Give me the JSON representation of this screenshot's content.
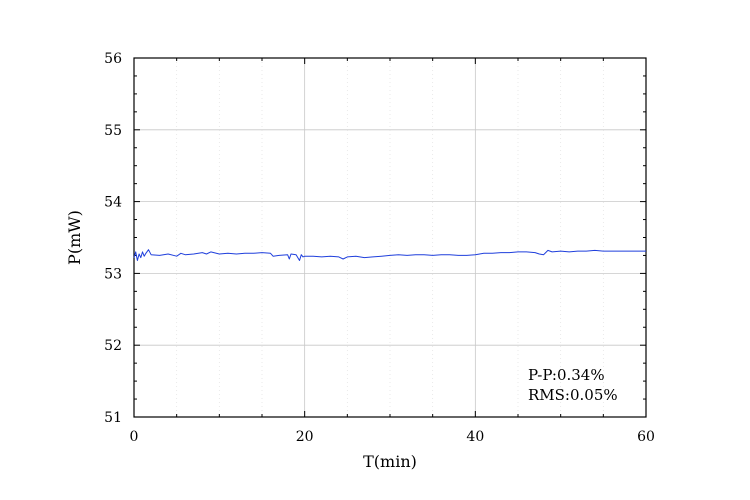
{
  "chart_data": {
    "type": "line",
    "xlabel": "T(min)",
    "ylabel": "P(mW)",
    "xlim": [
      0,
      60
    ],
    "ylim": [
      51,
      56
    ],
    "xticks": [
      0,
      20,
      40,
      60
    ],
    "xtick_labels": [
      "0",
      "20",
      "40",
      "60"
    ],
    "yticks": [
      51,
      52,
      53,
      54,
      55,
      56
    ],
    "ytick_labels": [
      "51",
      "52",
      "53",
      "54",
      "55",
      "56"
    ],
    "grid": true,
    "annotations": [
      "P-P:0.34%",
      "RMS:0.05%"
    ],
    "series": [
      {
        "color": "#1f3fdc",
        "x": [
          0,
          0.2,
          0.4,
          0.6,
          0.8,
          1.0,
          1.2,
          1.4,
          1.7,
          2.0,
          3.0,
          4.0,
          5.0,
          5.5,
          6.0,
          7.0,
          8.0,
          8.5,
          9.0,
          10.0,
          11.0,
          12.0,
          13.0,
          14.0,
          15.0,
          16.0,
          16.3,
          17.0,
          18.0,
          18.2,
          18.4,
          19.0,
          19.4,
          19.6,
          19.8,
          20.0,
          21.0,
          22.0,
          23.0,
          24.0,
          24.5,
          25.0,
          26.0,
          27.0,
          28.0,
          29.0,
          30.0,
          31.0,
          32.0,
          33.0,
          34.0,
          35.0,
          36.0,
          37.0,
          38.0,
          39.0,
          40.0,
          41.0,
          42.0,
          43.0,
          44.0,
          45.0,
          46.0,
          47.0,
          47.5,
          48.0,
          48.5,
          49.0,
          50.0,
          51.0,
          52.0,
          53.0,
          54.0,
          55.0,
          56.0,
          57.0,
          58.0,
          59.0,
          60.0
        ],
        "y": [
          53.22,
          53.3,
          53.18,
          53.27,
          53.22,
          53.3,
          53.24,
          53.28,
          53.33,
          53.26,
          53.25,
          53.27,
          53.24,
          53.28,
          53.26,
          53.27,
          53.29,
          53.27,
          53.3,
          53.27,
          53.28,
          53.27,
          53.28,
          53.28,
          53.29,
          53.28,
          53.24,
          53.25,
          53.26,
          53.2,
          53.27,
          53.26,
          53.18,
          53.26,
          53.23,
          53.24,
          53.24,
          53.23,
          53.24,
          53.23,
          53.2,
          53.23,
          53.24,
          53.22,
          53.23,
          53.24,
          53.25,
          53.26,
          53.25,
          53.26,
          53.26,
          53.25,
          53.26,
          53.26,
          53.25,
          53.25,
          53.26,
          53.28,
          53.28,
          53.29,
          53.29,
          53.3,
          53.3,
          53.29,
          53.27,
          53.26,
          53.32,
          53.3,
          53.31,
          53.3,
          53.31,
          53.31,
          53.32,
          53.31,
          53.31,
          53.31,
          53.31,
          53.31,
          53.31
        ]
      }
    ]
  }
}
